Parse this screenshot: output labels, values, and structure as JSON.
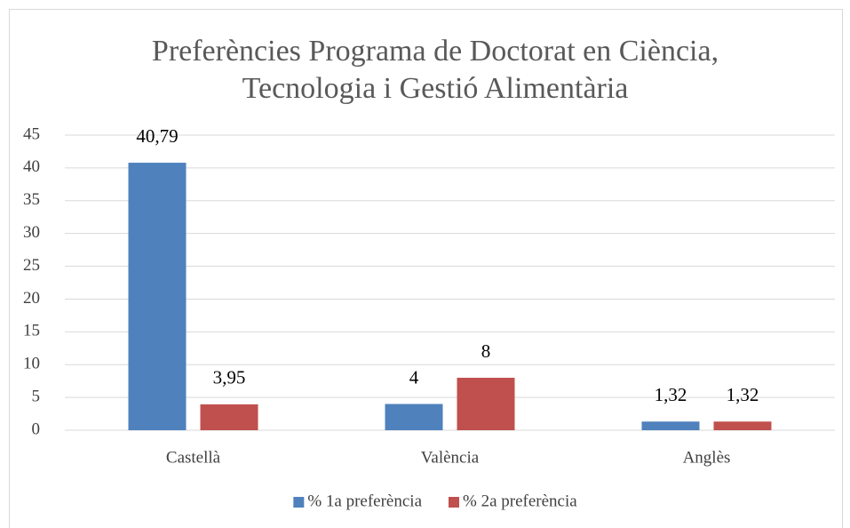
{
  "chart_data": {
    "type": "bar",
    "title": [
      "Preferències Programa de Doctorat en Ciència,",
      "Tecnologia i Gestió Alimentària"
    ],
    "categories": [
      "Castellà",
      "València",
      "Anglès"
    ],
    "series": [
      {
        "name": "% 1a preferència",
        "color": "#4f81bd",
        "values": [
          40.79,
          4,
          1.32
        ],
        "value_labels": [
          "40,79",
          "4",
          "1,32"
        ]
      },
      {
        "name": "% 2a preferència",
        "color": "#c0504d",
        "values": [
          3.95,
          8,
          1.32
        ],
        "value_labels": [
          "3,95",
          "8",
          "1,32"
        ]
      }
    ],
    "ylim": [
      0,
      45
    ],
    "yticks": [
      0,
      5,
      10,
      15,
      20,
      25,
      30,
      35,
      40,
      45
    ],
    "grid": true,
    "legend": "bottom"
  }
}
